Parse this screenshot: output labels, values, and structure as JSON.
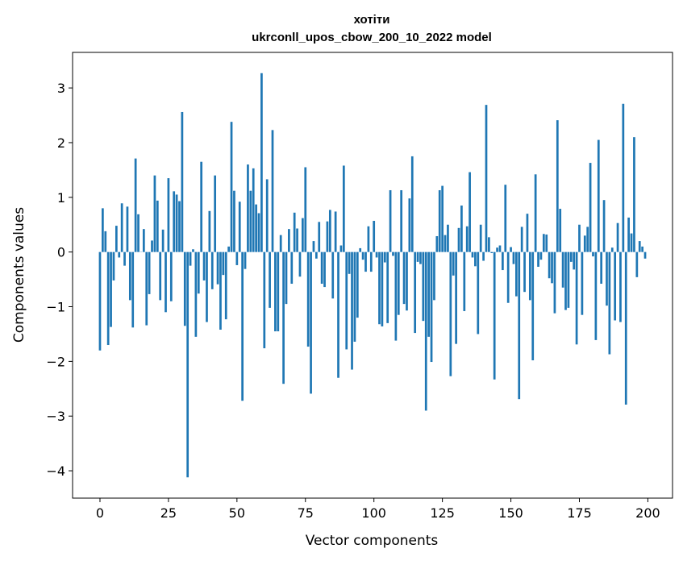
{
  "chart_data": {
    "type": "bar",
    "title": "хотіти",
    "subtitle": "ukrconll_upos_cbow_200_10_2022 model",
    "xlabel": "Vector components",
    "ylabel": "Components values",
    "xlim": [
      -10,
      209
    ],
    "ylim": [
      -4.5,
      3.65
    ],
    "xticks": [
      0,
      25,
      50,
      75,
      100,
      125,
      150,
      175,
      200
    ],
    "yticks": [
      -4,
      -3,
      -2,
      -1,
      0,
      1,
      2,
      3
    ],
    "grid": false,
    "bar_color": "#1f77b4",
    "values": [
      -1.8,
      0.8,
      0.38,
      -1.7,
      -1.37,
      -0.52,
      0.48,
      -0.1,
      0.89,
      -0.25,
      0.83,
      -0.88,
      -1.38,
      1.71,
      0.69,
      0.0,
      0.42,
      -1.34,
      -0.77,
      0.21,
      1.4,
      0.94,
      -0.88,
      0.41,
      -1.1,
      1.35,
      -0.9,
      1.11,
      1.05,
      0.93,
      2.56,
      -1.35,
      -4.12,
      -0.25,
      0.05,
      -1.55,
      -0.76,
      1.65,
      -0.52,
      -1.28,
      0.75,
      -0.68,
      1.4,
      -0.59,
      -1.42,
      -0.42,
      -1.23,
      0.1,
      2.38,
      1.12,
      -0.24,
      0.92,
      -2.72,
      -0.31,
      1.6,
      1.12,
      1.53,
      0.87,
      0.71,
      3.27,
      -1.76,
      1.33,
      -1.02,
      2.23,
      -1.45,
      -1.45,
      0.31,
      -2.41,
      -0.95,
      0.42,
      -0.58,
      0.72,
      0.43,
      -0.45,
      0.62,
      1.55,
      -1.73,
      -2.59,
      0.2,
      -0.12,
      0.55,
      -0.58,
      -0.64,
      0.56,
      0.77,
      -0.85,
      0.74,
      -2.3,
      0.12,
      1.58,
      -1.78,
      -0.4,
      -2.15,
      -1.64,
      -1.2,
      0.07,
      -0.14,
      -0.36,
      0.47,
      -0.36,
      0.57,
      -0.1,
      -1.32,
      -1.36,
      -0.19,
      -1.3,
      1.13,
      -0.07,
      -1.62,
      -1.15,
      1.13,
      -0.95,
      -1.07,
      0.98,
      1.75,
      -1.48,
      -0.18,
      -0.22,
      -1.26,
      -2.9,
      -1.55,
      -2.01,
      -0.88,
      0.29,
      1.13,
      1.21,
      0.31,
      0.5,
      -2.27,
      -0.43,
      -1.68,
      0.44,
      0.85,
      -1.08,
      0.47,
      1.46,
      -0.1,
      -0.26,
      -1.5,
      0.5,
      -0.16,
      2.69,
      0.27,
      -0.02,
      -2.33,
      0.08,
      0.12,
      -0.33,
      1.23,
      -0.93,
      0.09,
      -0.22,
      -0.81,
      -2.69,
      0.46,
      -0.73,
      0.7,
      -0.88,
      -1.98,
      1.42,
      -0.27,
      -0.14,
      0.33,
      0.32,
      -0.48,
      -0.57,
      -1.12,
      2.41,
      0.79,
      -0.65,
      -1.06,
      -1.02,
      -0.18,
      -0.32,
      -1.69,
      0.5,
      -1.15,
      0.3,
      0.46,
      1.63,
      -0.08,
      -1.61,
      2.05,
      -0.58,
      0.95,
      -0.98,
      -1.87,
      0.08,
      -1.25,
      0.53,
      -1.28,
      2.71,
      -2.79,
      0.63,
      0.34,
      2.1,
      -0.46,
      0.2,
      0.1,
      -0.12
    ]
  }
}
